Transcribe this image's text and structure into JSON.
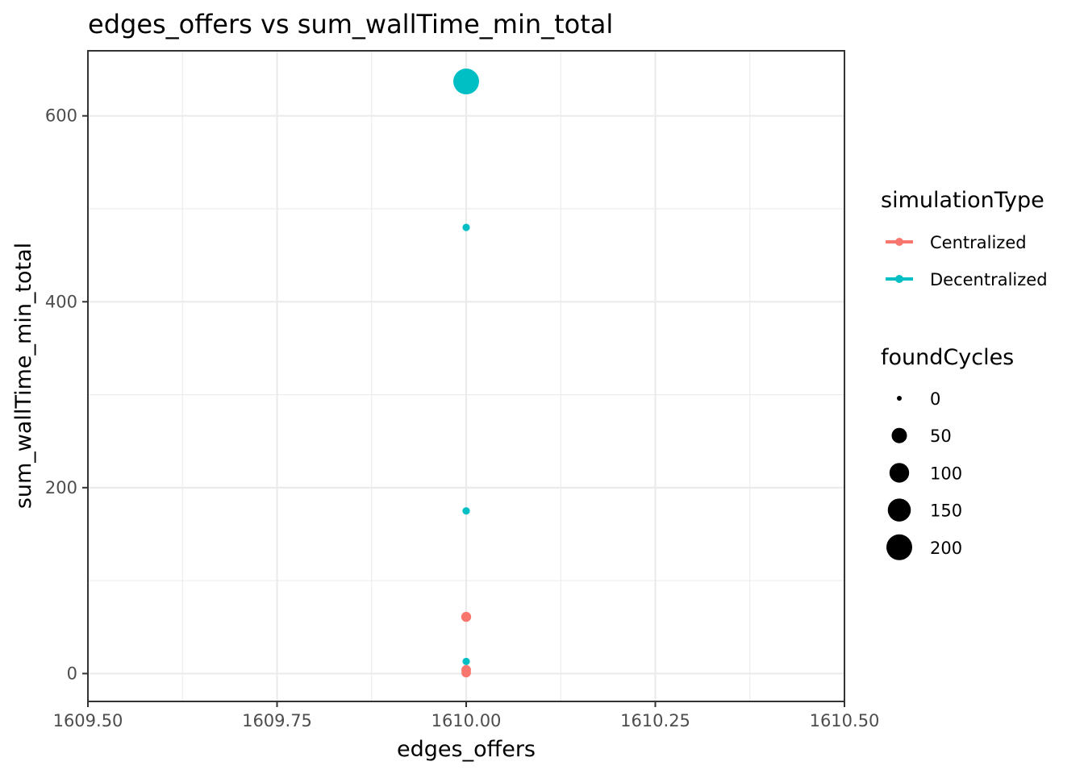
{
  "chart_data": {
    "type": "scatter",
    "title": "edges_offers  vs  sum_wallTime_min_total",
    "xlabel": "edges_offers",
    "ylabel": "sum_wallTime_min_total",
    "xlim": [
      1609.5,
      1610.5
    ],
    "ylim": [
      -30,
      670
    ],
    "x_ticks": [
      1609.5,
      1609.75,
      1610.0,
      1610.25,
      1610.5
    ],
    "x_tick_labels": [
      "1609.50",
      "1609.75",
      "1610.00",
      "1610.25",
      "1610.50"
    ],
    "y_ticks": [
      0,
      200,
      400,
      600
    ],
    "y_tick_labels": [
      "0",
      "200",
      "400",
      "600"
    ],
    "grid": true,
    "legend_placement": "right",
    "color_legend": {
      "title": "simulationType",
      "entries": [
        {
          "name": "Centralized",
          "color": "#f8766d"
        },
        {
          "name": "Decentralized",
          "color": "#00bfc4"
        }
      ]
    },
    "size_legend": {
      "title": "foundCycles",
      "entries": [
        {
          "label": "0",
          "value": 0
        },
        {
          "label": "50",
          "value": 50
        },
        {
          "label": "100",
          "value": 100
        },
        {
          "label": "150",
          "value": 150
        },
        {
          "label": "200",
          "value": 200
        }
      ]
    },
    "series": [
      {
        "name": "Centralized",
        "color": "#f8766d",
        "points": [
          {
            "x": 1610.0,
            "y": 61,
            "size": 12
          },
          {
            "x": 1610.0,
            "y": 4,
            "size": 10
          },
          {
            "x": 1610.0,
            "y": 1,
            "size": 10
          }
        ]
      },
      {
        "name": "Decentralized",
        "color": "#00bfc4",
        "points": [
          {
            "x": 1610.0,
            "y": 637,
            "size": 200
          },
          {
            "x": 1610.0,
            "y": 480,
            "size": 3
          },
          {
            "x": 1610.0,
            "y": 175,
            "size": 3
          },
          {
            "x": 1610.0,
            "y": 13,
            "size": 3
          }
        ]
      }
    ]
  }
}
